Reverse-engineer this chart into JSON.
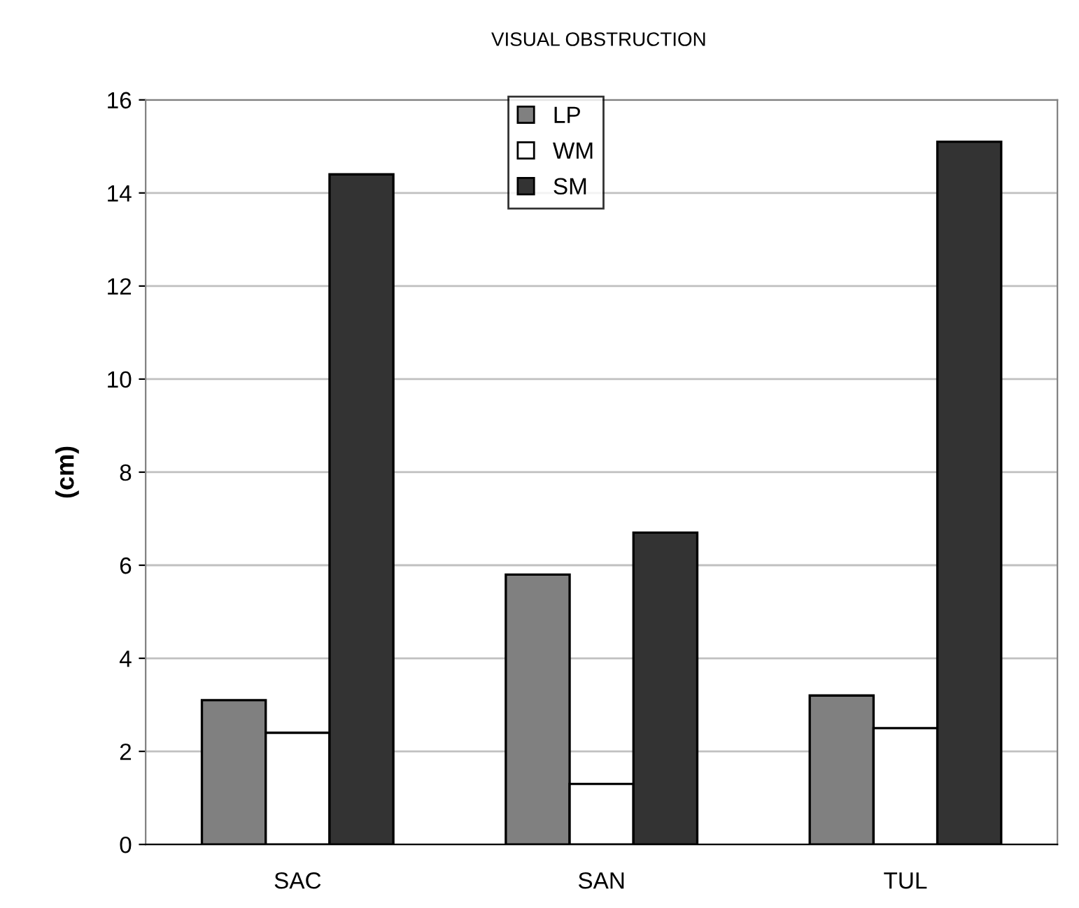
{
  "chart_data": {
    "type": "bar",
    "title": "VISUAL OBSTRUCTION",
    "ylabel": "(cm)",
    "categories": [
      "SAC",
      "SAN",
      "TUL"
    ],
    "series": [
      {
        "name": "LP",
        "color": "#808080",
        "values": [
          3.1,
          5.8,
          3.2
        ]
      },
      {
        "name": "WM",
        "color": "#ffffff",
        "values": [
          2.4,
          1.3,
          2.5
        ]
      },
      {
        "name": "SM",
        "color": "#333333",
        "values": [
          14.4,
          6.7,
          15.1
        ]
      }
    ],
    "ylim": [
      0,
      16
    ],
    "yticks": [
      0,
      2,
      4,
      6,
      8,
      10,
      12,
      14,
      16
    ],
    "grid": "y",
    "legend": "top"
  }
}
